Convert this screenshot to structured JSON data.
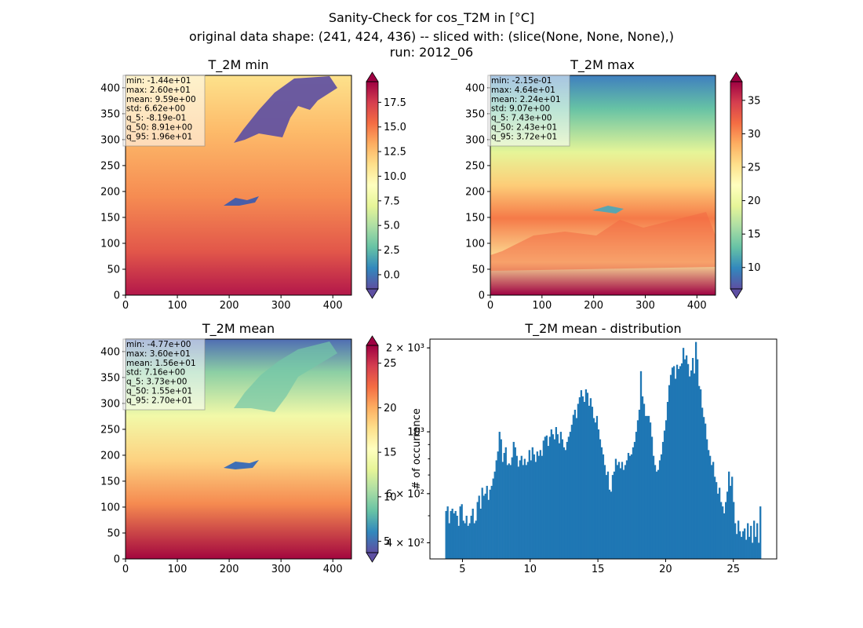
{
  "figure": {
    "title_lines": [
      "Sanity-Check for cos_T2M in [°C]",
      "original data shape: (241, 424, 436) -- sliced with: (slice(None, None, None),)",
      "run: 2012_06"
    ]
  },
  "chart_data": [
    {
      "type": "heatmap",
      "title": "T_2M min",
      "x_ticks": [
        "0",
        "100",
        "200",
        "300",
        "400"
      ],
      "y_ticks": [
        "0",
        "50",
        "100",
        "150",
        "200",
        "250",
        "300",
        "350",
        "400"
      ],
      "xlim": [
        0,
        436
      ],
      "ylim": [
        0,
        424
      ],
      "colormap": "Spectral_r",
      "colorbar": {
        "ticks": [
          "0.0",
          "2.5",
          "5.0",
          "7.5",
          "10.0",
          "12.5",
          "15.0",
          "17.5"
        ],
        "range": [
          -1.44,
          19.6
        ],
        "extend": "both"
      },
      "stats": [
        "min: -1.44e+01",
        "max: 2.60e+01",
        "mean: 9.59e+00",
        "std: 6.62e+00",
        "q_5: -8.19e-01",
        "q_50: 8.91e+00",
        "q_95: 1.96e+01"
      ]
    },
    {
      "type": "heatmap",
      "title": "T_2M max",
      "x_ticks": [
        "0",
        "100",
        "200",
        "300",
        "400"
      ],
      "y_ticks": [
        "0",
        "50",
        "100",
        "150",
        "200",
        "250",
        "300",
        "350",
        "400"
      ],
      "xlim": [
        0,
        436
      ],
      "ylim": [
        0,
        424
      ],
      "colormap": "Spectral_r",
      "colorbar": {
        "ticks": [
          "10",
          "15",
          "20",
          "25",
          "30",
          "35"
        ],
        "range": [
          6.8,
          37.8
        ],
        "extend": "both"
      },
      "stats": [
        "min: -2.15e-01",
        "max: 4.64e+01",
        "mean: 2.24e+01",
        "std: 9.07e+00",
        "q_5: 7.43e+00",
        "q_50: 2.43e+01",
        "q_95: 3.72e+01"
      ]
    },
    {
      "type": "heatmap",
      "title": "T_2M mean",
      "x_ticks": [
        "0",
        "100",
        "200",
        "300",
        "400"
      ],
      "y_ticks": [
        "0",
        "50",
        "100",
        "150",
        "200",
        "250",
        "300",
        "350",
        "400"
      ],
      "xlim": [
        0,
        436
      ],
      "ylim": [
        0,
        424
      ],
      "colormap": "Spectral_r",
      "colorbar": {
        "ticks": [
          "5",
          "10",
          "15",
          "20",
          "25"
        ],
        "range": [
          3.73,
          27.0
        ],
        "extend": "both"
      },
      "stats": [
        "min: -4.77e+00",
        "max: 3.60e+01",
        "mean: 1.56e+01",
        "std: 7.16e+00",
        "q_5: 3.73e+00",
        "q_50: 1.55e+01",
        "q_95: 2.70e+01"
      ]
    },
    {
      "type": "bar",
      "title": "T_2M mean - distribution",
      "ylabel": "# of occurrence",
      "yscale": "log",
      "color": "#1f77b4",
      "x_ticks": [
        "5",
        "10",
        "15",
        "20",
        "25"
      ],
      "xlim": [
        2.6,
        28.2
      ],
      "ylim": [
        350,
        2150
      ],
      "y_ticks": [
        {
          "value": 400,
          "label": "4 × 10²"
        },
        {
          "value": 600,
          "label": "6 × 10²"
        },
        {
          "value": 1000,
          "label": "10³"
        },
        {
          "value": 2000,
          "label": "2 × 10³"
        }
      ],
      "bin_width": 0.116,
      "x_start": 3.73,
      "values": [
        520,
        540,
        470,
        520,
        530,
        510,
        520,
        500,
        460,
        540,
        550,
        480,
        470,
        500,
        460,
        470,
        500,
        530,
        470,
        480,
        560,
        590,
        530,
        630,
        590,
        600,
        640,
        570,
        620,
        640,
        680,
        720,
        790,
        850,
        1000,
        940,
        780,
        840,
        880,
        760,
        770,
        760,
        810,
        920,
        880,
        820,
        750,
        790,
        820,
        760,
        800,
        760,
        780,
        860,
        790,
        880,
        830,
        780,
        850,
        820,
        860,
        820,
        930,
        960,
        970,
        890,
        960,
        1020,
        980,
        940,
        1040,
        980,
        910,
        1000,
        940,
        880,
        860,
        920,
        960,
        1000,
        1060,
        1150,
        1200,
        1120,
        1260,
        1330,
        1410,
        1340,
        1280,
        1420,
        1380,
        1240,
        1320,
        1230,
        1120,
        1080,
        1140,
        1020,
        940,
        880,
        830,
        760,
        700,
        720,
        620,
        610,
        700,
        720,
        800,
        760,
        780,
        740,
        780,
        730,
        760,
        790,
        840,
        820,
        830,
        880,
        920,
        1000,
        1100,
        1200,
        1650,
        1340,
        1260,
        1140,
        1140,
        1140,
        1080,
        960,
        820,
        760,
        720,
        730,
        790,
        830,
        920,
        1010,
        1100,
        1280,
        1470,
        1600,
        1700,
        1720,
        1550,
        1740,
        1680,
        1720,
        1760,
        2000,
        1820,
        1880,
        1750,
        1580,
        1660,
        1840,
        1620,
        2100,
        1820,
        1460,
        1420,
        1220,
        1130,
        1070,
        940,
        860,
        820,
        760,
        780,
        690,
        660,
        600,
        630,
        560,
        540,
        510,
        560,
        610,
        720,
        640,
        690,
        560,
        470,
        430,
        480,
        440,
        420,
        440,
        450,
        410,
        470,
        420,
        460,
        400,
        480,
        420,
        470,
        400,
        540
      ]
    }
  ]
}
